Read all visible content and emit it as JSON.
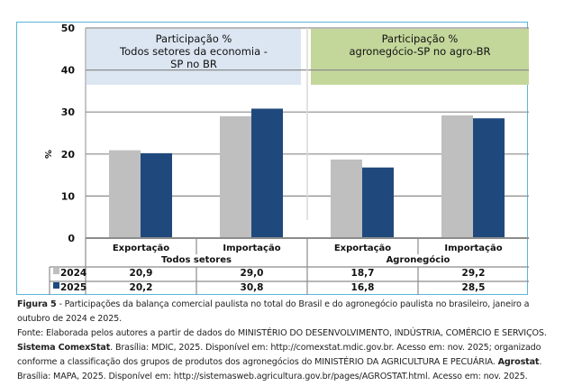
{
  "chart_data": {
    "type": "bar",
    "ylabel": "%",
    "ylim": [
      0,
      50
    ],
    "yticks": [
      0,
      10,
      20,
      30,
      40,
      50
    ],
    "grid": true,
    "groups": [
      {
        "name": "Todos setores",
        "categories": [
          "Exportação",
          "Importação"
        ],
        "panel_title": [
          "Participação %",
          "Todos setores da economia -",
          "SP no BR"
        ],
        "panel_color": "#dce6f2"
      },
      {
        "name": "Agronegócio",
        "categories": [
          "Exportação",
          "Importação"
        ],
        "panel_title": [
          "Participação %",
          "agronegócio-SP no agro-BR"
        ],
        "panel_color": "#c4d79b"
      }
    ],
    "categories": [
      "Exportação",
      "Importação",
      "Exportação",
      "Importação"
    ],
    "series": [
      {
        "name": "2024",
        "color": "#bfbfbf",
        "values": [
          20.9,
          29.0,
          18.7,
          29.2
        ],
        "labels": [
          "20,9",
          "29,0",
          "18,7",
          "29,2"
        ]
      },
      {
        "name": "2025",
        "color": "#1f497d",
        "values": [
          20.2,
          30.8,
          16.8,
          28.5
        ],
        "labels": [
          "20,2",
          "30,8",
          "16,8",
          "28,5"
        ]
      }
    ],
    "legend": "data-table-left"
  },
  "caption": {
    "figure_label": "Figura 5",
    "figure_text": " - Participações da balança comercial paulista no total do Brasil e do agronegócio paulista no brasileiro, janeiro a outubro de 2024 e 2025.",
    "source_1": "Fonte: Elaborada pelos autores a partir de dados do MINISTÉRIO DO DESENVOLVIMENTO, INDÚSTRIA, COMÉRCIO E SERVIÇOS. ",
    "source_bold_1": "Sistema ComexStat",
    "source_2": ". Brasília: MDIC, 2025. Disponível em: http://comexstat.mdic.gov.br. Acesso em: nov. 2025; organizado conforme a classificação dos grupos de produtos dos agronegócios do MINISTÉRIO DA AGRICULTURA E PECUÁRIA. ",
    "source_bold_2": "Agrostat",
    "source_3": ". Brasília: MAPA, 2025. Disponível em: http://sistemasweb.agricultura.gov.br/pages/AGROSTAT.html. Acesso em: nov. 2025."
  }
}
